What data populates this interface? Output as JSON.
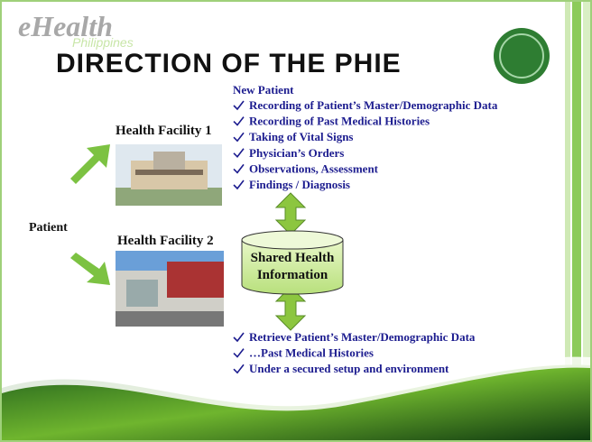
{
  "header": {
    "logo": "eHealth",
    "logo_sub": "Philippines",
    "title": "DIRECTION OF THE PHIE"
  },
  "new_patient": {
    "heading": "New Patient",
    "items": [
      "Recording of Patient’s Master/Demographic Data",
      "Recording of Past Medical Histories",
      "Taking of Vital Signs",
      "Physician’s Orders",
      "Observations, Assessment",
      "Findings / Diagnosis"
    ]
  },
  "facilities": [
    "Health Facility 1",
    "Health Facility 2"
  ],
  "patient": "Patient",
  "shared": {
    "lines": [
      "Shared Health",
      "Information"
    ]
  },
  "retrieve": {
    "items": [
      "Retrieve Patient’s Master/Demographic Data",
      "…Past Medical Histories",
      "Under a secured setup and environment"
    ]
  }
}
